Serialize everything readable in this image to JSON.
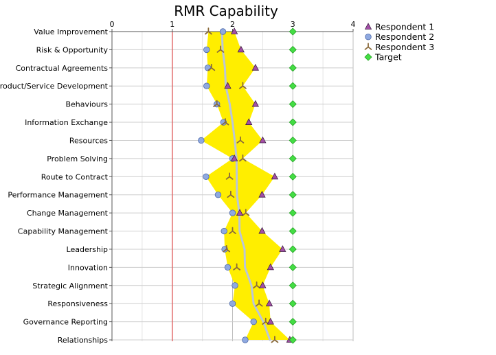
{
  "chart_data": {
    "type": "scatter",
    "title": "RMR Capability",
    "xlim": [
      0,
      4
    ],
    "x_ticks": [
      "0",
      "1",
      "2",
      "3",
      "4"
    ],
    "reference_line_x": 1,
    "reference_line_color": "#e06666",
    "grid": true,
    "legend_position": "top-right",
    "band_color": "#ffee00",
    "trend_color": "#bbc6d8",
    "categories": [
      "Value Improvement",
      "Risk & Opportunity",
      "Contractual Agreements",
      "Product/Service Development",
      "Behaviours",
      "Information Exchange",
      "Resources",
      "Problem Solving",
      "Route to Contract",
      "Performance Management",
      "Change Management",
      "Capability Management",
      "Leadership",
      "Innovation",
      "Strategic Alignment",
      "Responsiveness",
      "Governance Reporting",
      "Relationships"
    ],
    "series": [
      {
        "name": "Respondent 1",
        "marker": "triangle",
        "color": "#a24fa6",
        "values": [
          2.03,
          2.14,
          2.38,
          1.92,
          2.38,
          2.27,
          2.5,
          2.03,
          2.7,
          2.49,
          2.12,
          2.49,
          2.83,
          2.63,
          2.5,
          2.61,
          2.63,
          2.95
        ]
      },
      {
        "name": "Respondent 2",
        "marker": "circle",
        "color": "#8fa9e0",
        "values": [
          1.84,
          1.57,
          1.59,
          1.57,
          1.74,
          1.85,
          1.48,
          2.0,
          1.56,
          1.76,
          2.0,
          1.86,
          1.87,
          1.92,
          2.04,
          2.0,
          2.35,
          2.21
        ]
      },
      {
        "name": "Respondent 3",
        "marker": "tripod",
        "color": "#8a6a3a",
        "values": [
          1.6,
          1.8,
          1.65,
          2.17,
          1.74,
          1.88,
          2.13,
          2.17,
          1.95,
          1.97,
          2.22,
          2.0,
          1.9,
          2.07,
          2.4,
          2.44,
          2.55,
          2.7
        ]
      },
      {
        "name": "Target",
        "marker": "diamond",
        "color": "#44dd44",
        "values": [
          3,
          3,
          3,
          3,
          3,
          3,
          3,
          3,
          3,
          3,
          3,
          3,
          3,
          3,
          3,
          3,
          3,
          3
        ]
      }
    ]
  }
}
